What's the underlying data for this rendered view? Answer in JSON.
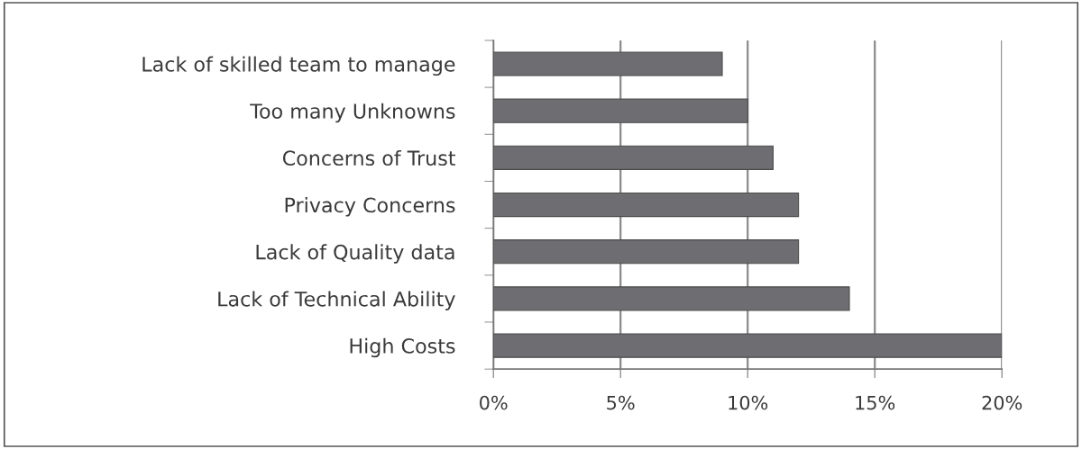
{
  "chart_data": {
    "type": "bar",
    "orientation": "horizontal",
    "categories": [
      "Lack of skilled team to manage",
      "Too many Unknowns",
      "Concerns of Trust",
      "Privacy Concerns",
      "Lack of Quality data",
      "Lack of Technical Ability",
      "High Costs"
    ],
    "values": [
      9,
      10,
      11,
      12,
      12,
      14,
      20
    ],
    "color": "#6e6e72",
    "xlim": [
      0,
      20
    ],
    "xticks": [
      {
        "value": 0,
        "label": "0%"
      },
      {
        "value": 5,
        "label": "5%"
      },
      {
        "value": 10,
        "label": "10%"
      },
      {
        "value": 15,
        "label": "15%"
      },
      {
        "value": 20,
        "label": "20%"
      }
    ],
    "grid": "x"
  }
}
